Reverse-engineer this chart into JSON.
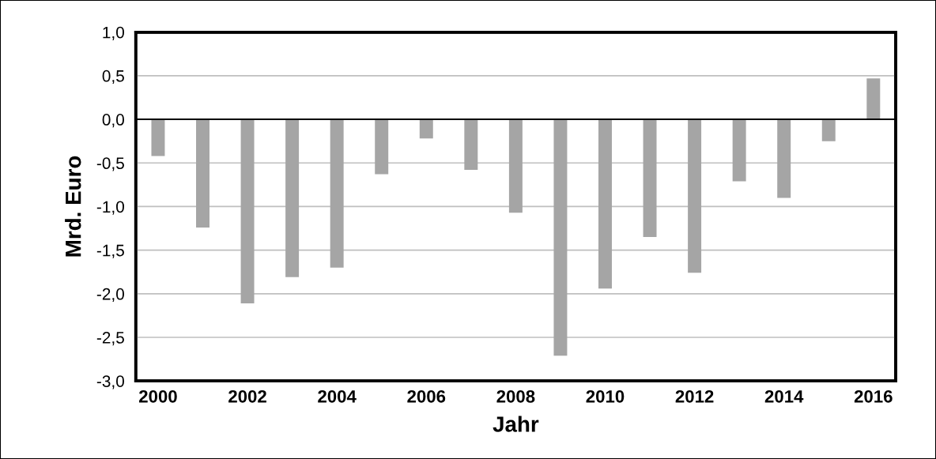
{
  "chart_data": {
    "type": "bar",
    "xlabel": "Jahr",
    "ylabel": "Mrd. Euro",
    "categories": [
      "2000",
      null,
      "2002",
      null,
      "2004",
      null,
      "2006",
      null,
      "2008",
      null,
      "2010",
      null,
      "2012",
      null,
      "2014",
      null,
      "2016"
    ],
    "values": [
      -0.42,
      -1.24,
      -2.11,
      -1.81,
      -1.7,
      -0.63,
      -0.22,
      -0.58,
      -1.07,
      -2.71,
      -1.94,
      -1.35,
      -1.76,
      -0.71,
      -0.9,
      -0.25,
      0.47
    ],
    "color": "#a5a5a5",
    "ylim": [
      -3,
      1
    ],
    "yticks": [
      {
        "value": -3,
        "label": "-3,0"
      },
      {
        "value": -2.5,
        "label": "-2,5"
      },
      {
        "value": -2,
        "label": "-2,0"
      },
      {
        "value": -1.5,
        "label": "-1,5"
      },
      {
        "value": -1,
        "label": "-1,0"
      },
      {
        "value": -0.5,
        "label": "-0,5"
      },
      {
        "value": 0,
        "label": "0,0"
      },
      {
        "value": 0.5,
        "label": "0,5"
      },
      {
        "value": 1,
        "label": "1,0"
      }
    ],
    "grid": "y",
    "legend": false
  }
}
